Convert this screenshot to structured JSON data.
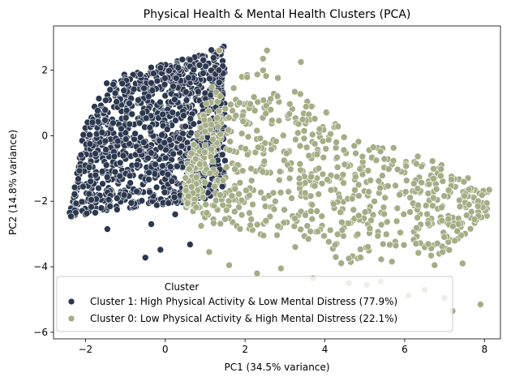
{
  "chart_data": {
    "type": "scatter",
    "title": "Physical Health & Mental Health Clusters (PCA)",
    "xlabel": "PC1 (34.5% variance)",
    "ylabel": "PC2 (14.8% variance)",
    "xlim": [
      -2.8,
      8.4
    ],
    "ylim": [
      -6.2,
      3.35
    ],
    "xticks": [
      -2,
      0,
      2,
      4,
      6,
      8
    ],
    "yticks": [
      -6,
      -4,
      -2,
      0,
      2
    ],
    "grid": false,
    "legend": {
      "title": "Cluster",
      "placement": "lower-left",
      "entries": [
        "Cluster 1: High Physical Activity & Low Mental Distress (77.9%)",
        "Cluster 0: Low Physical Activity & High Mental Distress (22.1%)"
      ]
    },
    "series": [
      {
        "name": "Cluster 1: High Physical Activity & Low Mental Distress (77.9%)",
        "color": "#2b384f",
        "share": 0.779,
        "region": {
          "x": [
            -2.4,
            1.5
          ],
          "lower_edge": [
            [
              -2.4,
              -2.5
            ],
            [
              -1.5,
              -2.3
            ],
            [
              0.0,
              -2.1
            ],
            [
              1.0,
              -2.0
            ],
            [
              1.5,
              -1.5
            ]
          ],
          "upper_edge": [
            [
              -2.4,
              -2.2
            ],
            [
              -2.0,
              0.4
            ],
            [
              -1.5,
              1.6
            ],
            [
              -1.0,
              1.9
            ],
            [
              0.0,
              2.2
            ],
            [
              1.0,
              2.5
            ],
            [
              1.5,
              2.9
            ]
          ]
        },
        "outliers": [
          [
            -1.45,
            -2.85
          ],
          [
            -0.5,
            -3.72
          ],
          [
            -0.12,
            -3.48
          ],
          [
            0.62,
            -3.32
          ],
          [
            -0.85,
            -2.05
          ],
          [
            0.25,
            -2.4
          ],
          [
            -0.35,
            -2.7
          ]
        ]
      },
      {
        "name": "Cluster 0: Low Physical Activity & High Mental Distress (22.1%)",
        "color": "#a4ad86",
        "share": 0.221,
        "region": {
          "x": [
            0.5,
            8.1
          ],
          "lower_edge": [
            [
              0.5,
              -2.3
            ],
            [
              1.0,
              -3.0
            ],
            [
              2.0,
              -3.4
            ],
            [
              3.0,
              -3.6
            ],
            [
              4.0,
              -3.9
            ],
            [
              5.0,
              -4.0
            ],
            [
              6.0,
              -4.1
            ],
            [
              7.0,
              -3.9
            ],
            [
              8.0,
              -2.5
            ]
          ],
          "upper_edge": [
            [
              0.5,
              -1.0
            ],
            [
              1.0,
              1.5
            ],
            [
              2.0,
              2.4
            ],
            [
              3.0,
              2.0
            ],
            [
              4.0,
              0.9
            ],
            [
              5.0,
              0.2
            ],
            [
              6.0,
              -0.1
            ],
            [
              7.0,
              -0.6
            ],
            [
              8.0,
              -1.6
            ]
          ]
        },
        "outliers": [
          [
            7.2,
            -5.35
          ],
          [
            7.9,
            -5.15
          ],
          [
            6.1,
            -4.88
          ],
          [
            5.4,
            -4.45
          ],
          [
            4.6,
            -4.5
          ],
          [
            3.7,
            -4.35
          ],
          [
            2.9,
            -4.05
          ],
          [
            8.12,
            -1.65
          ],
          [
            7.75,
            -2.55
          ],
          [
            6.95,
            -3.55
          ],
          [
            7.45,
            -3.9
          ],
          [
            6.75,
            -3.95
          ],
          [
            5.05,
            -4.55
          ],
          [
            6.5,
            -4.7
          ],
          [
            7.0,
            -4.95
          ],
          [
            2.55,
            2.6
          ],
          [
            2.45,
            2.35
          ],
          [
            3.4,
            2.25
          ],
          [
            1.35,
            2.6
          ],
          [
            0.9,
            -2.75
          ],
          [
            1.1,
            -3.55
          ],
          [
            1.6,
            -3.95
          ],
          [
            2.3,
            -4.2
          ]
        ]
      }
    ]
  }
}
